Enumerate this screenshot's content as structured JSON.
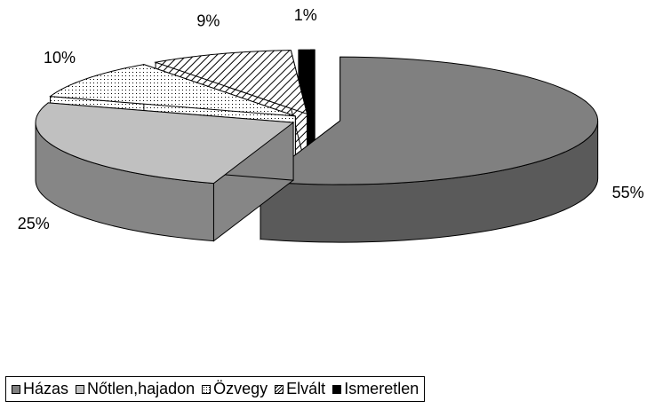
{
  "chart_data": {
    "type": "pie",
    "categories": [
      "Házas",
      "Nőtlen,hajadon",
      "Özvegy",
      "Elvált",
      "Ismeretlen"
    ],
    "values": [
      55,
      25,
      10,
      9,
      1
    ],
    "value_labels": [
      "55%",
      "25%",
      "10%",
      "9%",
      "1%"
    ],
    "colors": [
      "#808080",
      "#c0c0c0",
      "#ffffff",
      "#ffffff",
      "#000000"
    ],
    "patterns": [
      "solid",
      "solid",
      "dots",
      "hatch",
      "solid"
    ],
    "legend": "bottom"
  }
}
